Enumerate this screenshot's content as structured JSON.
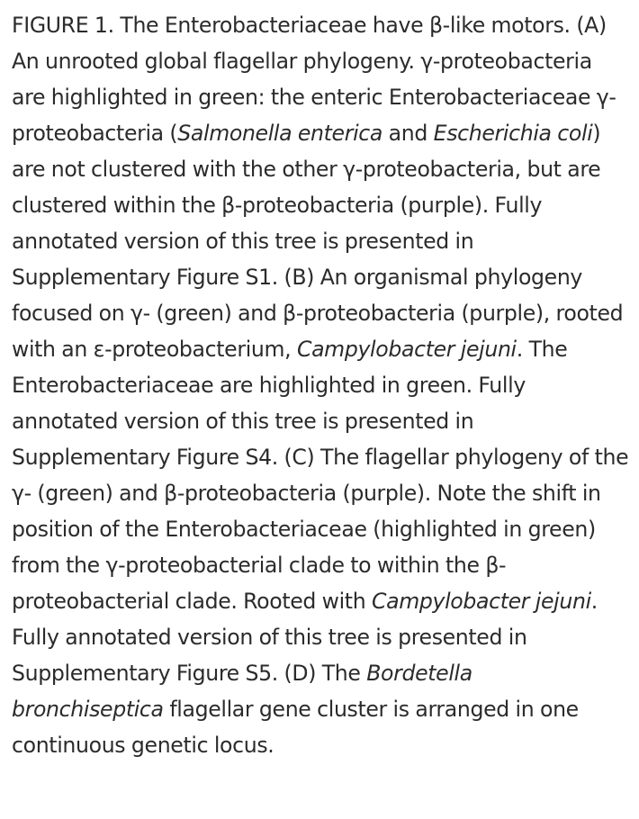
{
  "caption": {
    "seg_01": "FIGURE 1. The Enterobacteriaceae have β-like motors. (A) An unrooted global flagellar phylogeny. γ-proteobacteria are highlighted in green: the enteric Enterobacteriaceae γ-proteobacteria (",
    "seg_02": "Salmonella enterica",
    "seg_03": " and ",
    "seg_04": "Escherichia coli",
    "seg_05": ") are not clustered with the other γ-proteobacteria, but are clustered within the β-proteobacteria (purple). Fully annotated version of this tree is presented in Supplementary Figure S1. (B) An organismal phylogeny focused on γ- (green) and β-proteobacteria (purple), rooted with an ε-proteobacterium, ",
    "seg_06": "Campylobacter jejuni",
    "seg_07": ". The Enterobacteriaceae are highlighted in green. Fully annotated version of this tree is presented in Supplementary Figure S4. (C) The flagellar phylogeny of the γ- (green) and β-proteobacteria (purple). Note the shift in position of the Enterobacteriaceae (highlighted in green) from the γ-proteobacterial clade to within the β-proteobacterial clade. Rooted with ",
    "seg_08": "Campylobacter jejuni",
    "seg_09": ". Fully annotated version of this tree is presented in Supplementary Figure S5. (D) The ",
    "seg_10": "Bordetella bronchiseptica",
    "seg_11": " flagellar gene cluster is arranged in one continuous genetic locus."
  }
}
